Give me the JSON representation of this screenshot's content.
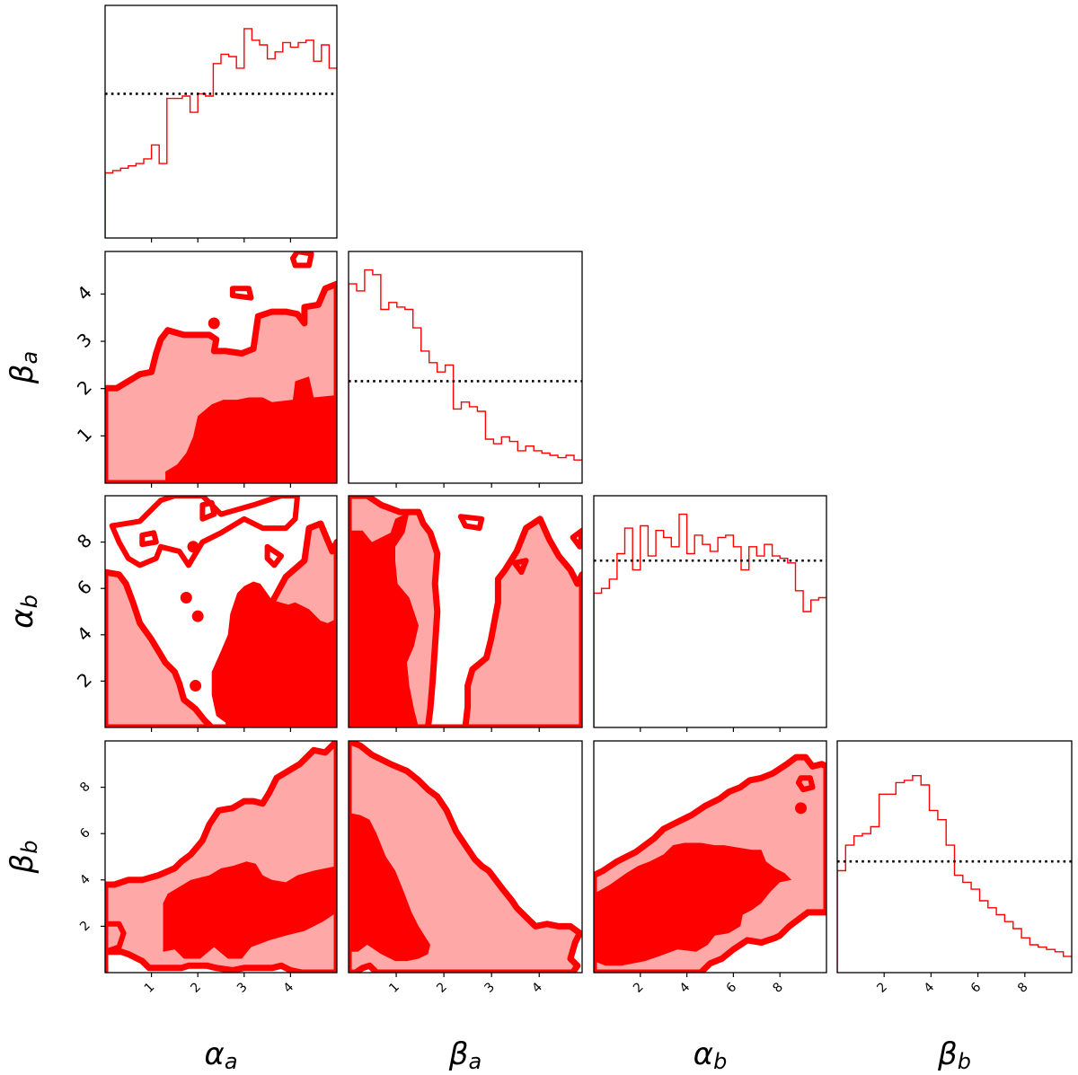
{
  "chart_data": {
    "type": "corner",
    "parameters": [
      {
        "key": "alpha_a",
        "symbol": "α",
        "subscript": "a",
        "range": [
          0,
          5
        ],
        "ticks": [
          1,
          2,
          3,
          4
        ]
      },
      {
        "key": "beta_a",
        "symbol": "β",
        "subscript": "a",
        "range": [
          0,
          4.9
        ],
        "ticks": [
          1,
          2,
          3,
          4
        ]
      },
      {
        "key": "alpha_b",
        "symbol": "α",
        "subscript": "b",
        "range": [
          0,
          10
        ],
        "ticks": [
          2,
          4,
          6,
          8
        ]
      },
      {
        "key": "beta_b",
        "symbol": "β",
        "subscript": "b",
        "range": [
          0,
          10
        ],
        "ticks": [
          2,
          4,
          6,
          8
        ]
      }
    ],
    "diagonal_histograms": [
      {
        "parameter": "alpha_a",
        "reference_level": 0.62,
        "bin_heights": [
          0.28,
          0.29,
          0.3,
          0.31,
          0.32,
          0.34,
          0.4,
          0.32,
          0.6,
          0.6,
          0.61,
          0.54,
          0.62,
          0.61,
          0.75,
          0.79,
          0.78,
          0.73,
          0.9,
          0.85,
          0.83,
          0.77,
          0.8,
          0.84,
          0.82,
          0.84,
          0.85,
          0.76,
          0.83,
          0.73
        ]
      },
      {
        "parameter": "beta_a",
        "reference_level": 0.44,
        "bin_heights": [
          0.86,
          0.83,
          0.92,
          0.9,
          0.75,
          0.78,
          0.76,
          0.75,
          0.67,
          0.57,
          0.52,
          0.48,
          0.51,
          0.32,
          0.35,
          0.33,
          0.31,
          0.19,
          0.17,
          0.2,
          0.18,
          0.14,
          0.16,
          0.14,
          0.13,
          0.12,
          0.11,
          0.12,
          0.1
        ]
      },
      {
        "parameter": "alpha_b",
        "reference_level": 0.72,
        "bin_heights": [
          0.58,
          0.6,
          0.64,
          0.75,
          0.86,
          0.68,
          0.87,
          0.74,
          0.85,
          0.82,
          0.78,
          0.92,
          0.75,
          0.83,
          0.79,
          0.76,
          0.82,
          0.83,
          0.78,
          0.68,
          0.78,
          0.74,
          0.79,
          0.74,
          0.73,
          0.71,
          0.59,
          0.5,
          0.55,
          0.56
        ]
      },
      {
        "parameter": "beta_b",
        "reference_level": 0.48,
        "bin_heights": [
          0.44,
          0.55,
          0.59,
          0.6,
          0.63,
          0.77,
          0.77,
          0.82,
          0.83,
          0.85,
          0.81,
          0.7,
          0.66,
          0.55,
          0.42,
          0.39,
          0.36,
          0.31,
          0.28,
          0.25,
          0.22,
          0.19,
          0.15,
          0.12,
          0.11,
          0.1,
          0.09,
          0.07
        ]
      }
    ],
    "contour_levels": [
      "outer",
      "inner"
    ],
    "panels": [
      {
        "x": "alpha_a",
        "y": "beta_a"
      },
      {
        "x": "alpha_a",
        "y": "alpha_b"
      },
      {
        "x": "beta_a",
        "y": "alpha_b"
      },
      {
        "x": "alpha_a",
        "y": "beta_b"
      },
      {
        "x": "beta_a",
        "y": "beta_b"
      },
      {
        "x": "alpha_b",
        "y": "beta_b"
      }
    ]
  },
  "colors": {
    "line": "#ff0000",
    "outer_fill": "#ffa8a8",
    "inner_fill": "#ff0000",
    "reference_line": "#000000"
  }
}
